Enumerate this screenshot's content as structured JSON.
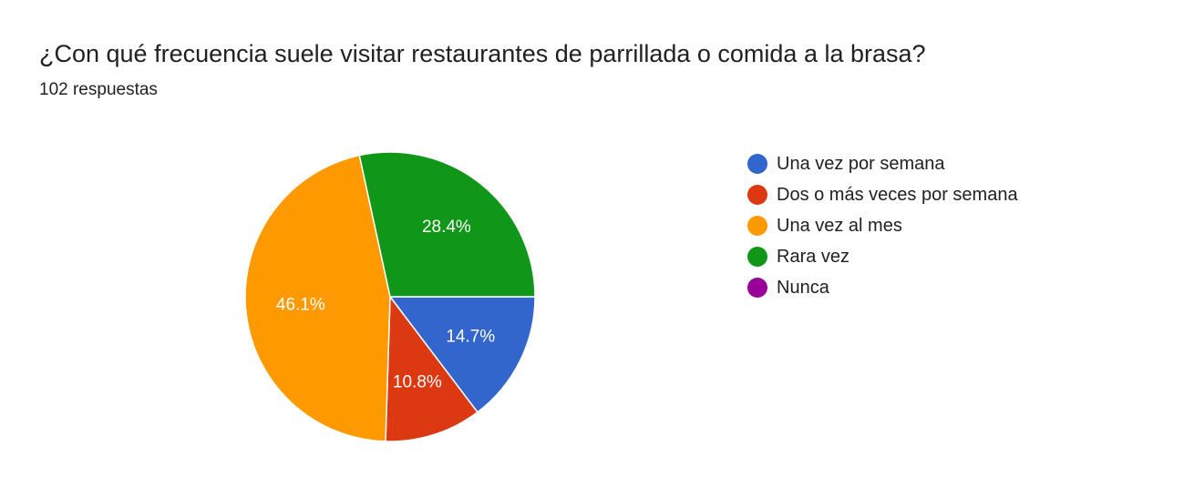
{
  "header": {
    "title": "¿Con qué frecuencia suele visitar restaurantes de parrillada o comida a la brasa?",
    "response_count": "102 respuestas"
  },
  "chart_data": {
    "type": "pie",
    "categories": [
      "Una vez por semana",
      "Dos o más veces por semana",
      "Una vez al mes",
      "Rara vez",
      "Nunca"
    ],
    "values": [
      14.7,
      10.8,
      46.1,
      28.4,
      0
    ],
    "value_labels": [
      "14.7%",
      "10.8%",
      "46.1%",
      "28.4%",
      ""
    ],
    "colors": [
      "#3366cc",
      "#dc3912",
      "#ff9900",
      "#109618",
      "#990099"
    ],
    "legend_position": "right"
  }
}
